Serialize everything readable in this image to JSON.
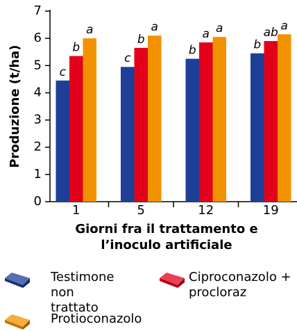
{
  "chart_data": {
    "type": "bar",
    "ylabel": "Produzione (t/ha)",
    "xlabel": "Giorni fra il trattamento e l’inoculo artificiale",
    "categories": [
      "1",
      "5",
      "12",
      "19"
    ],
    "series": [
      {
        "name": "Testimone non trattato",
        "color": "#1d3f98",
        "values": [
          4.45,
          4.95,
          5.25,
          5.45
        ],
        "letters": [
          "c",
          "c",
          "b",
          "b"
        ]
      },
      {
        "name": "Ciproconazolo + procloraz",
        "color": "#e2001a",
        "values": [
          5.35,
          5.65,
          5.85,
          5.9
        ],
        "letters": [
          "b",
          "b",
          "a",
          "ab"
        ]
      },
      {
        "name": "Protioconazolo",
        "color": "#f39200",
        "values": [
          6.0,
          6.1,
          6.05,
          6.15
        ],
        "letters": [
          "a",
          "a",
          "a",
          "a"
        ]
      }
    ],
    "ylim": [
      0,
      7
    ],
    "yticks": [
      0,
      1,
      2,
      3,
      4,
      5,
      6,
      7
    ]
  }
}
